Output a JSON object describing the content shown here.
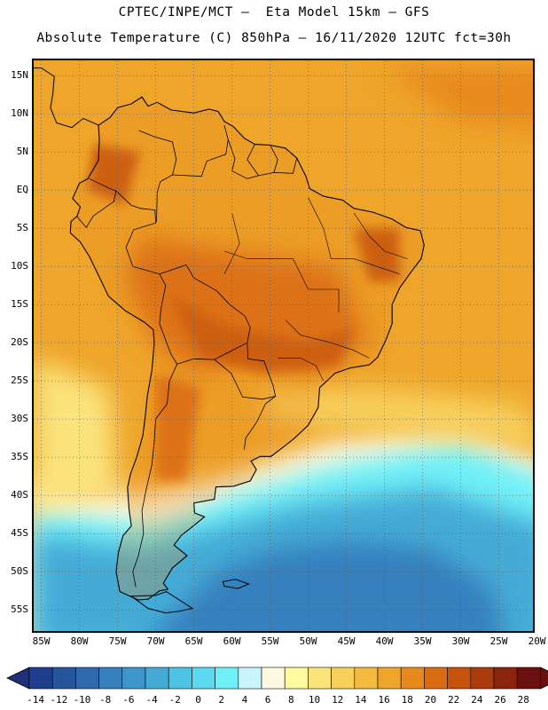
{
  "header": {
    "line1": "CPTEC/INPE/MCT –  Eta Model 15km – GFS",
    "line2": "Absolute Temperature (C) 850hPa – 16/11/2020 12UTC fct=30h"
  },
  "map": {
    "lat_labels": [
      "15N",
      "10N",
      "5N",
      "EQ",
      "5S",
      "10S",
      "15S",
      "20S",
      "25S",
      "30S",
      "35S",
      "40S",
      "45S",
      "50S",
      "55S"
    ],
    "lon_labels": [
      "85W",
      "80W",
      "75W",
      "70W",
      "65W",
      "60W",
      "55W",
      "50W",
      "45W",
      "40W",
      "35W",
      "30W",
      "25W",
      "20W"
    ],
    "grid_color": "#555555",
    "coast_color": "#000000"
  },
  "colorbar": {
    "levels": [
      "-14",
      "-12",
      "-10",
      "-8",
      "-6",
      "-4",
      "-2",
      "0",
      "2",
      "4",
      "6",
      "8",
      "10",
      "12",
      "14",
      "16",
      "18",
      "20",
      "22",
      "24",
      "26",
      "28"
    ],
    "colors": [
      "#1f3f8c",
      "#27559c",
      "#2e6aad",
      "#3580bd",
      "#3d96c9",
      "#45abd6",
      "#4fc3e3",
      "#5cd9ee",
      "#6ff0f8",
      "#c9f4fb",
      "#fff7e0",
      "#fffaa0",
      "#fbe37c",
      "#f7cf5b",
      "#f2bb3f",
      "#eea52a",
      "#e8891d",
      "#d96b13",
      "#c5530e",
      "#a93b0c",
      "#8a240c",
      "#6b0f10"
    ],
    "under_color": "#1f2f7a",
    "over_color": "#6b0f10"
  }
}
